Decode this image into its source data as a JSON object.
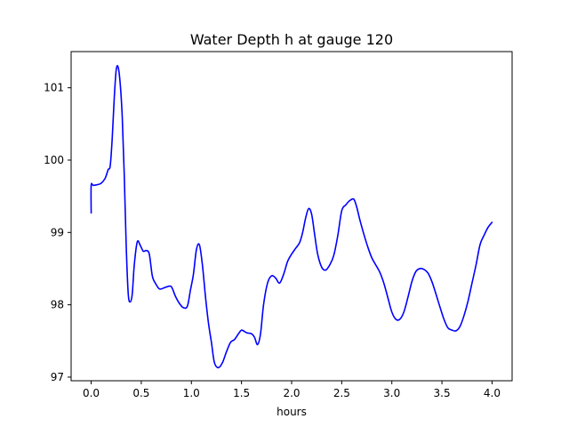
{
  "chart_data": {
    "type": "line",
    "title": "Water Depth h at gauge 120",
    "xlabel": "hours",
    "ylabel": "",
    "xlim": [
      -0.2,
      4.2
    ],
    "ylim": [
      96.95,
      101.5
    ],
    "grid": false,
    "x_ticks": [
      0.0,
      0.5,
      1.0,
      1.5,
      2.0,
      2.5,
      3.0,
      3.5,
      4.0
    ],
    "x_tick_labels": [
      "0.0",
      "0.5",
      "1.0",
      "1.5",
      "2.0",
      "2.5",
      "3.0",
      "3.5",
      "4.0"
    ],
    "y_ticks": [
      97,
      98,
      99,
      100,
      101
    ],
    "y_tick_labels": [
      "97",
      "98",
      "99",
      "100",
      "101"
    ],
    "series": [
      {
        "color": "#0000ff",
        "x": [
          0.0,
          0.0,
          0.02,
          0.06,
          0.1,
          0.14,
          0.17,
          0.19,
          0.21,
          0.23,
          0.25,
          0.27,
          0.29,
          0.31,
          0.33,
          0.35,
          0.37,
          0.39,
          0.41,
          0.43,
          0.46,
          0.49,
          0.52,
          0.55,
          0.58,
          0.61,
          0.64,
          0.68,
          0.72,
          0.76,
          0.8,
          0.84,
          0.88,
          0.92,
          0.96,
          0.99,
          1.02,
          1.05,
          1.08,
          1.11,
          1.14,
          1.17,
          1.2,
          1.23,
          1.27,
          1.31,
          1.35,
          1.39,
          1.43,
          1.47,
          1.5,
          1.53,
          1.56,
          1.6,
          1.63,
          1.66,
          1.69,
          1.72,
          1.76,
          1.8,
          1.84,
          1.88,
          1.92,
          1.96,
          2.0,
          2.04,
          2.08,
          2.11,
          2.14,
          2.17,
          2.2,
          2.23,
          2.26,
          2.3,
          2.34,
          2.38,
          2.42,
          2.46,
          2.5,
          2.54,
          2.58,
          2.62,
          2.65,
          2.68,
          2.72,
          2.76,
          2.8,
          2.84,
          2.88,
          2.92,
          2.96,
          3.0,
          3.04,
          3.08,
          3.12,
          3.16,
          3.2,
          3.24,
          3.28,
          3.32,
          3.36,
          3.4,
          3.44,
          3.48,
          3.52,
          3.56,
          3.6,
          3.64,
          3.68,
          3.72,
          3.76,
          3.8,
          3.84,
          3.88,
          3.92,
          3.96,
          4.0
        ],
        "y": [
          99.27,
          99.65,
          99.65,
          99.66,
          99.68,
          99.75,
          99.87,
          99.92,
          100.3,
          100.85,
          101.25,
          101.28,
          101.05,
          100.6,
          99.8,
          98.8,
          98.15,
          98.04,
          98.15,
          98.55,
          98.87,
          98.82,
          98.74,
          98.75,
          98.7,
          98.4,
          98.3,
          98.22,
          98.23,
          98.25,
          98.25,
          98.12,
          98.02,
          97.96,
          97.98,
          98.2,
          98.42,
          98.76,
          98.83,
          98.55,
          98.12,
          97.75,
          97.48,
          97.2,
          97.13,
          97.2,
          97.35,
          97.48,
          97.52,
          97.6,
          97.65,
          97.63,
          97.61,
          97.6,
          97.55,
          97.45,
          97.6,
          98.0,
          98.3,
          98.4,
          98.37,
          98.3,
          98.42,
          98.6,
          98.7,
          98.78,
          98.86,
          99.0,
          99.2,
          99.33,
          99.25,
          98.97,
          98.7,
          98.52,
          98.48,
          98.55,
          98.68,
          98.95,
          99.3,
          99.38,
          99.44,
          99.46,
          99.35,
          99.18,
          98.98,
          98.8,
          98.65,
          98.55,
          98.45,
          98.3,
          98.1,
          97.9,
          97.8,
          97.8,
          97.9,
          98.1,
          98.32,
          98.46,
          98.5,
          98.49,
          98.44,
          98.32,
          98.15,
          97.97,
          97.8,
          97.68,
          97.65,
          97.64,
          97.7,
          97.85,
          98.05,
          98.3,
          98.55,
          98.83,
          98.96,
          99.07,
          99.14
        ]
      }
    ]
  }
}
